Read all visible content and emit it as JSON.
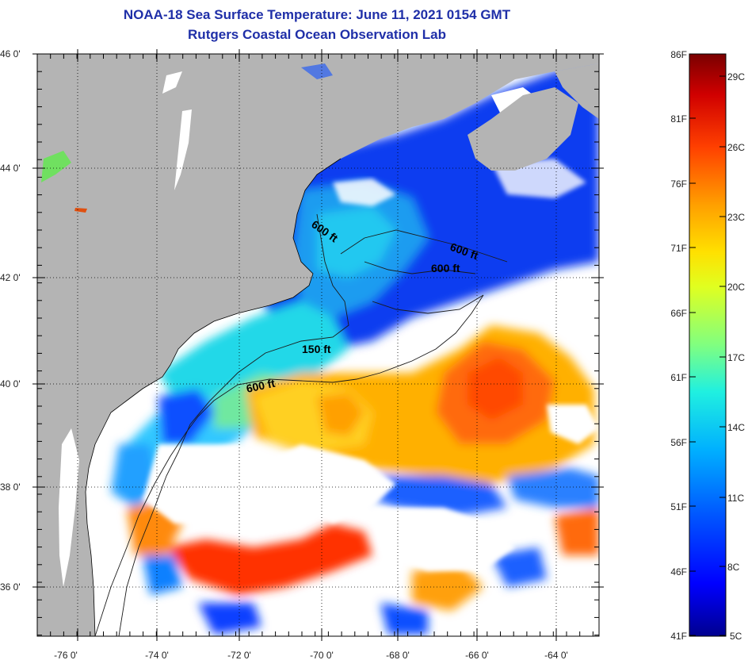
{
  "title": {
    "line1": "NOAA-18 Sea Surface Temperature:  June 11, 2021 0154 GMT",
    "line2": "Rutgers Coastal Ocean Observation Lab"
  },
  "map": {
    "lat_labels": [
      "46 0'",
      "44 0'",
      "42 0'",
      "40 0'",
      "38 0'",
      "36 0'"
    ],
    "lon_labels": [
      "-76 0'",
      "-74 0'",
      "-72 0'",
      "-70 0'",
      "-68 0'",
      "-66 0'",
      "-64 0'"
    ],
    "contour_labels": [
      "600 ft",
      "600 ft",
      "600 ft",
      "150 ft",
      "600 ft"
    ],
    "land_color": "#b4b4b4",
    "cloud_color": "#ffffff"
  },
  "colorbar": {
    "fahrenheit": [
      "86F",
      "81F",
      "76F",
      "71F",
      "66F",
      "61F",
      "56F",
      "51F",
      "46F",
      "41F"
    ],
    "celsius": [
      "29C",
      "26C",
      "23C",
      "20C",
      "17C",
      "14C",
      "11C",
      "8C",
      "5C"
    ],
    "colors": [
      "#00008f",
      "#0000ff",
      "#0060ff",
      "#00c0ff",
      "#40ffc0",
      "#c0ff40",
      "#ffff00",
      "#ffc000",
      "#ff6000",
      "#ff0000",
      "#a00000",
      "#7a0000"
    ]
  }
}
